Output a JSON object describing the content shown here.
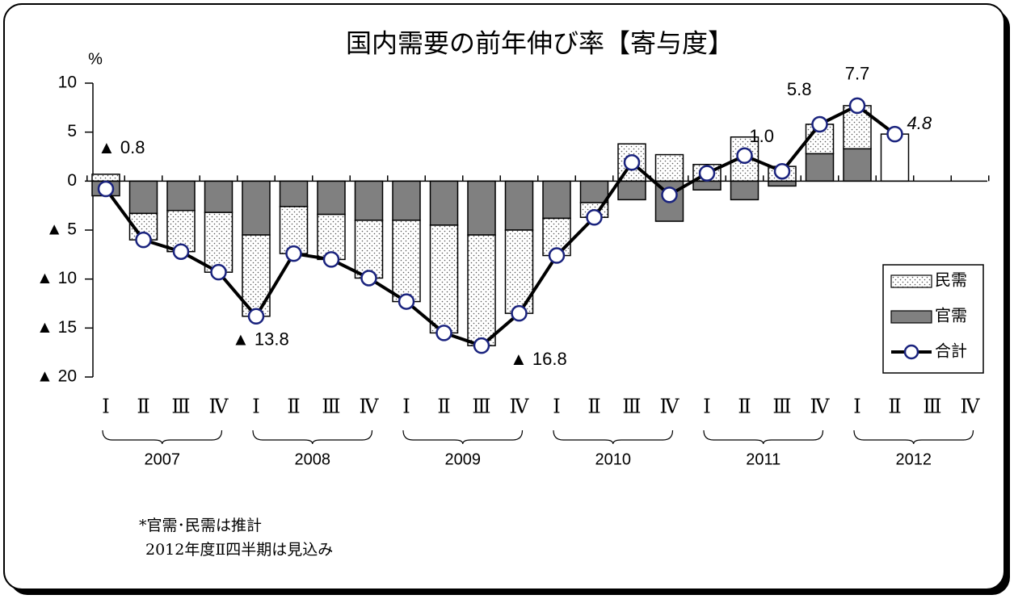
{
  "chart_data": {
    "type": "bar",
    "title": "国内需要の前年伸び率【寄与度】",
    "y_unit": "%",
    "categories": [
      "Ⅰ",
      "Ⅱ",
      "Ⅲ",
      "Ⅳ",
      "Ⅰ",
      "Ⅱ",
      "Ⅲ",
      "Ⅳ",
      "Ⅰ",
      "Ⅱ",
      "Ⅲ",
      "Ⅳ",
      "Ⅰ",
      "Ⅱ",
      "Ⅲ",
      "Ⅳ",
      "Ⅰ",
      "Ⅱ",
      "Ⅲ",
      "Ⅳ",
      "Ⅰ",
      "Ⅱ",
      "Ⅲ",
      "Ⅳ"
    ],
    "years": [
      "2007",
      "2008",
      "2009",
      "2010",
      "2011",
      "2012"
    ],
    "ylim": [
      -20,
      10
    ],
    "yticks": [
      10,
      5,
      0,
      {
        "value": -5,
        "label": "▲ 5"
      },
      {
        "value": -10,
        "label": "▲ 10"
      },
      {
        "value": -15,
        "label": "▲ 15"
      },
      {
        "value": -20,
        "label": "▲ 20"
      }
    ],
    "series": [
      {
        "name": "民需",
        "type": "bar",
        "color": "#ffffff",
        "pattern": "dots",
        "values": [
          0.7,
          -2.7,
          -4.2,
          -6.1,
          -8.3,
          -4.8,
          -4.6,
          -5.9,
          -8.3,
          -11.0,
          -11.3,
          -8.5,
          -3.8,
          -1.5,
          3.8,
          2.7,
          1.7,
          4.5,
          1.5,
          3.0,
          4.4,
          null,
          null,
          null
        ]
      },
      {
        "name": "官需",
        "type": "bar",
        "color": "#808080",
        "values": [
          -1.5,
          -3.3,
          -3.0,
          -3.2,
          -5.5,
          -2.6,
          -3.4,
          -4.0,
          -4.0,
          -4.5,
          -5.5,
          -5.0,
          -3.8,
          -2.2,
          -1.9,
          -4.1,
          -0.9,
          -1.9,
          -0.5,
          2.8,
          3.3,
          null,
          null,
          null
        ]
      },
      {
        "name": "合計",
        "type": "line",
        "color": "#000000",
        "marker_color": "#1a237e",
        "values": [
          -0.8,
          -6.0,
          -7.2,
          -9.3,
          -13.8,
          -7.4,
          -8.0,
          -9.9,
          -12.3,
          -15.5,
          -16.8,
          -13.5,
          -7.6,
          -3.7,
          1.9,
          -1.4,
          0.8,
          2.6,
          1.0,
          5.8,
          7.7,
          4.8,
          null,
          null
        ],
        "value_labels": [
          "▲ 0.8",
          null,
          null,
          null,
          "▲ 13.8",
          null,
          null,
          null,
          null,
          null,
          "▲ 16.8",
          null,
          null,
          null,
          null,
          null,
          null,
          null,
          "1.0",
          "5.8",
          "7.7",
          "4.8",
          null,
          null
        ]
      }
    ],
    "notes": [
      "*官需･民需は推計",
      "2012年度Ⅱ四半期は見込み"
    ]
  }
}
